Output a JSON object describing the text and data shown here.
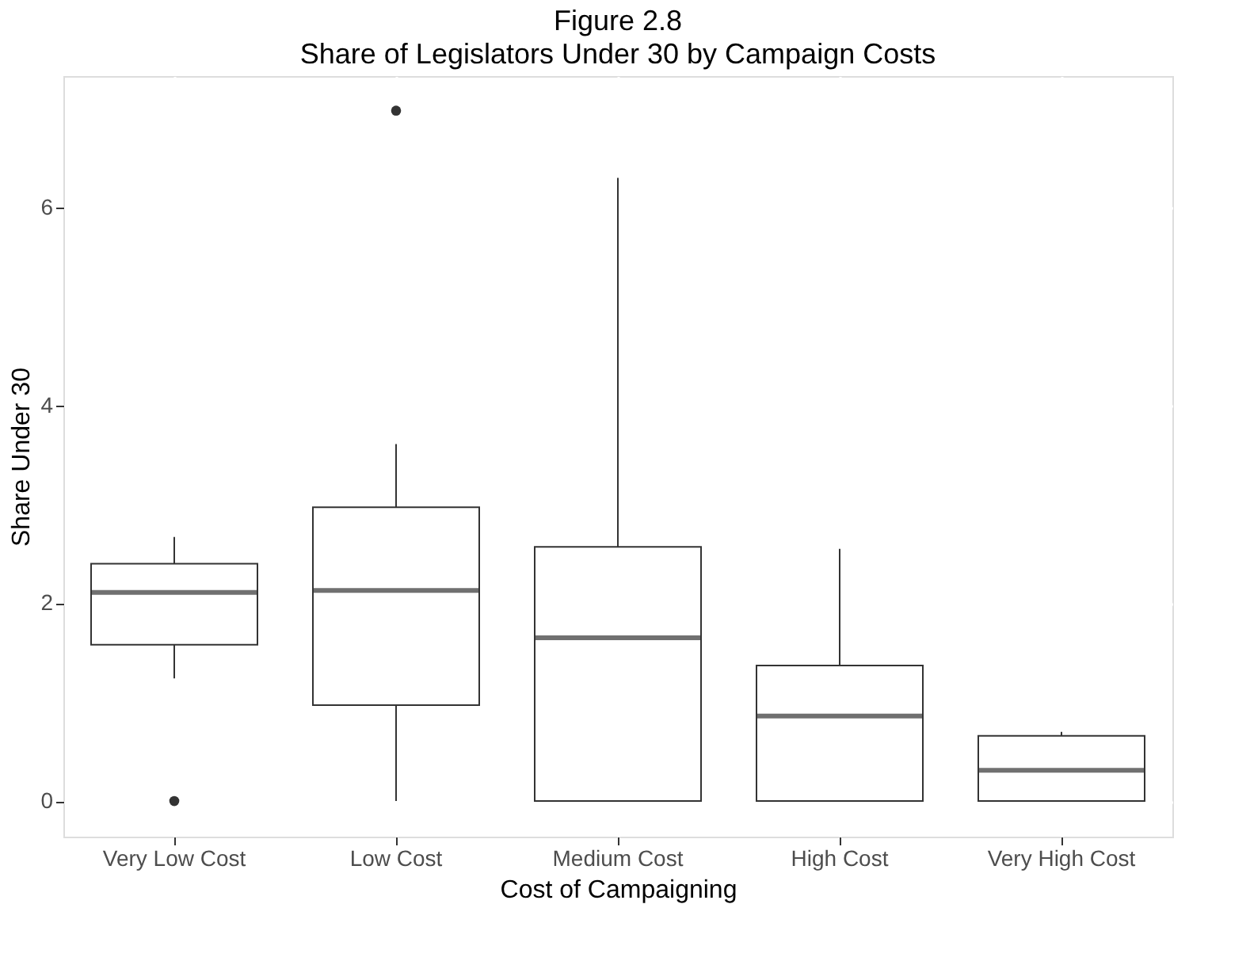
{
  "chart_data": {
    "type": "box",
    "title": "Figure 2.8",
    "subtitle": "Share of Legislators Under 30 by Campaign Costs",
    "xlabel": "Cost of Campaigning",
    "ylabel": "Share Under 30",
    "categories": [
      "Very Low Cost",
      "Low Cost",
      "Medium Cost",
      "High Cost",
      "Very High Cost"
    ],
    "boxes": [
      {
        "low": 1.24,
        "q1": 1.58,
        "median": 2.11,
        "q3": 2.4,
        "high": 2.67,
        "outliers": [
          0
        ]
      },
      {
        "low": 0,
        "q1": 0.97,
        "median": 2.13,
        "q3": 2.97,
        "high": 3.61,
        "outliers": [
          6.98
        ]
      },
      {
        "low": 0,
        "q1": 0,
        "median": 1.65,
        "q3": 2.57,
        "high": 6.3
      },
      {
        "low": 0,
        "q1": 0,
        "median": 0.86,
        "q3": 1.37,
        "high": 2.55
      },
      {
        "low": 0,
        "q1": 0,
        "median": 0.31,
        "q3": 0.66,
        "high": 0.7
      }
    ],
    "ylim": [
      -0.36,
      7.33
    ],
    "yticks": [
      0,
      2,
      4,
      6
    ],
    "grid": true
  }
}
